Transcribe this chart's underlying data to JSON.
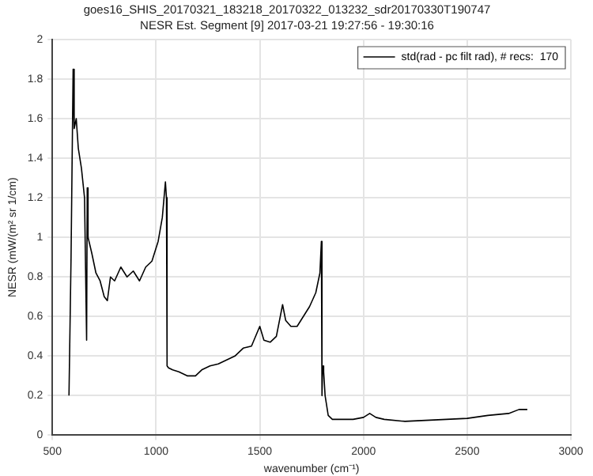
{
  "chart_data": {
    "type": "line",
    "title": "goes16_SHIS_20170321_183218_20170322_013232_sdr20170330T190747",
    "subtitle": "NESR Est. Segment [9] 2017-03-21 19:27:56 - 19:30:16",
    "xlabel": "wavenumber (cm⁻¹)",
    "ylabel": "NESR (mW/(m² sr 1/cm)",
    "series": [
      {
        "name": "std(rad - pc filt rad), # recs:  170",
        "color": "#000000",
        "x": [
          580,
          590,
          600,
          605,
          615,
          625,
          640,
          655,
          665,
          668,
          672,
          690,
          710,
          730,
          750,
          765,
          780,
          800,
          830,
          860,
          890,
          920,
          950,
          980,
          1010,
          1030,
          1045,
          1050,
          1053,
          1060,
          1080,
          1110,
          1150,
          1190,
          1220,
          1260,
          1300,
          1340,
          1380,
          1420,
          1460,
          1500,
          1520,
          1550,
          1580,
          1610,
          1625,
          1650,
          1680,
          1710,
          1740,
          1770,
          1790,
          1797,
          1800,
          1803,
          1808,
          1815,
          1830,
          1850,
          1900,
          1950,
          2000,
          2030,
          2060,
          2100,
          2200,
          2300,
          2400,
          2500,
          2600,
          2700,
          2750,
          2790
        ],
        "values": [
          0.2,
          0.9,
          1.85,
          1.55,
          1.6,
          1.45,
          1.35,
          1.2,
          0.48,
          1.25,
          1.0,
          0.92,
          0.82,
          0.78,
          0.7,
          0.68,
          0.8,
          0.78,
          0.85,
          0.8,
          0.83,
          0.78,
          0.85,
          0.88,
          0.98,
          1.1,
          1.28,
          1.2,
          0.35,
          0.34,
          0.33,
          0.32,
          0.3,
          0.3,
          0.33,
          0.35,
          0.36,
          0.38,
          0.4,
          0.44,
          0.45,
          0.55,
          0.48,
          0.47,
          0.5,
          0.66,
          0.58,
          0.55,
          0.55,
          0.6,
          0.65,
          0.72,
          0.82,
          0.98,
          0.2,
          0.35,
          0.32,
          0.2,
          0.1,
          0.08,
          0.08,
          0.08,
          0.09,
          0.11,
          0.09,
          0.08,
          0.07,
          0.075,
          0.08,
          0.085,
          0.1,
          0.11,
          0.13,
          0.13
        ]
      }
    ],
    "xlim": [
      500,
      3000
    ],
    "xticks": [
      500,
      1000,
      1500,
      2000,
      2500,
      3000
    ],
    "ylim": [
      0,
      2
    ],
    "yticks": [
      0,
      0.2,
      0.4,
      0.6,
      0.8,
      1,
      1.2,
      1.4,
      1.6,
      1.8,
      2
    ],
    "grid": true,
    "legend": "top right",
    "marker": "none",
    "line_style": "solid"
  }
}
